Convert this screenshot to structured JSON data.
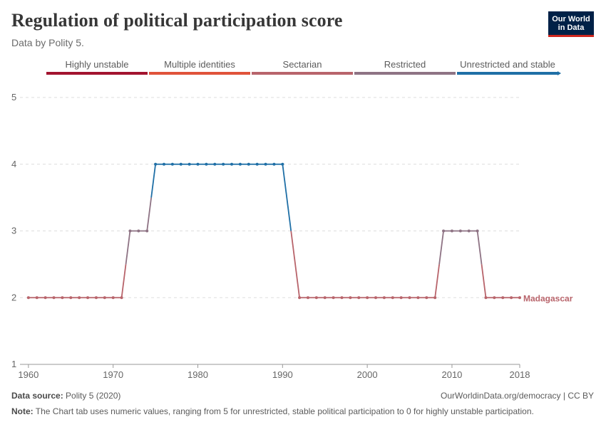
{
  "header": {
    "title": "Regulation of political participation score",
    "subtitle": "Data by Polity 5."
  },
  "logo": {
    "line1": "Our World",
    "line2": "in Data"
  },
  "footer": {
    "source_label": "Data source:",
    "source_value": "Polity 5 (2020)",
    "url": "OurWorldinData.org/democracy | CC BY",
    "note_label": "Note:",
    "note_text": "The Chart tab uses numeric values, ranging from 5 for unrestricted, stable political participation to 0 for highly unstable participation."
  },
  "chart_data": {
    "type": "line",
    "y_ticks": [
      1,
      2,
      3,
      4,
      5
    ],
    "x_ticks": [
      1960,
      1970,
      1980,
      1990,
      2000,
      2010,
      2018
    ],
    "ylim": [
      1,
      5
    ],
    "xlim": [
      1959,
      2018
    ],
    "grid": "horizontal dashed",
    "legend": {
      "placement": "top",
      "categories": [
        {
          "label": "Highly unstable",
          "color": "#a2142f"
        },
        {
          "label": "Multiple identities",
          "color": "#e0533a"
        },
        {
          "label": "Sectarian",
          "color": "#b8646b"
        },
        {
          "label": "Restricted",
          "color": "#8e7384"
        },
        {
          "label": "Unrestricted and stable",
          "color": "#1f6fa6"
        }
      ]
    },
    "series": [
      {
        "name": "Madagascar",
        "color": "#b8646b",
        "x": [
          1960,
          1961,
          1962,
          1963,
          1964,
          1965,
          1966,
          1967,
          1968,
          1969,
          1970,
          1971,
          1972,
          1973,
          1974,
          1975,
          1976,
          1977,
          1978,
          1979,
          1980,
          1981,
          1982,
          1983,
          1984,
          1985,
          1986,
          1987,
          1988,
          1989,
          1990,
          1991,
          1992,
          1993,
          1994,
          1995,
          1996,
          1997,
          1998,
          1999,
          2000,
          2001,
          2002,
          2003,
          2004,
          2005,
          2006,
          2007,
          2008,
          2009,
          2010,
          2011,
          2012,
          2013,
          2014,
          2015,
          2016,
          2017,
          2018
        ],
        "y": [
          2,
          2,
          2,
          2,
          2,
          2,
          2,
          2,
          2,
          2,
          2,
          2,
          3,
          3,
          3,
          4,
          4,
          4,
          4,
          4,
          4,
          4,
          4,
          4,
          4,
          4,
          4,
          4,
          4,
          4,
          4,
          null,
          2,
          2,
          2,
          2,
          2,
          2,
          2,
          2,
          2,
          2,
          2,
          2,
          2,
          2,
          2,
          2,
          2,
          3,
          3,
          3,
          3,
          3,
          2,
          2,
          2,
          2,
          2
        ]
      }
    ]
  }
}
